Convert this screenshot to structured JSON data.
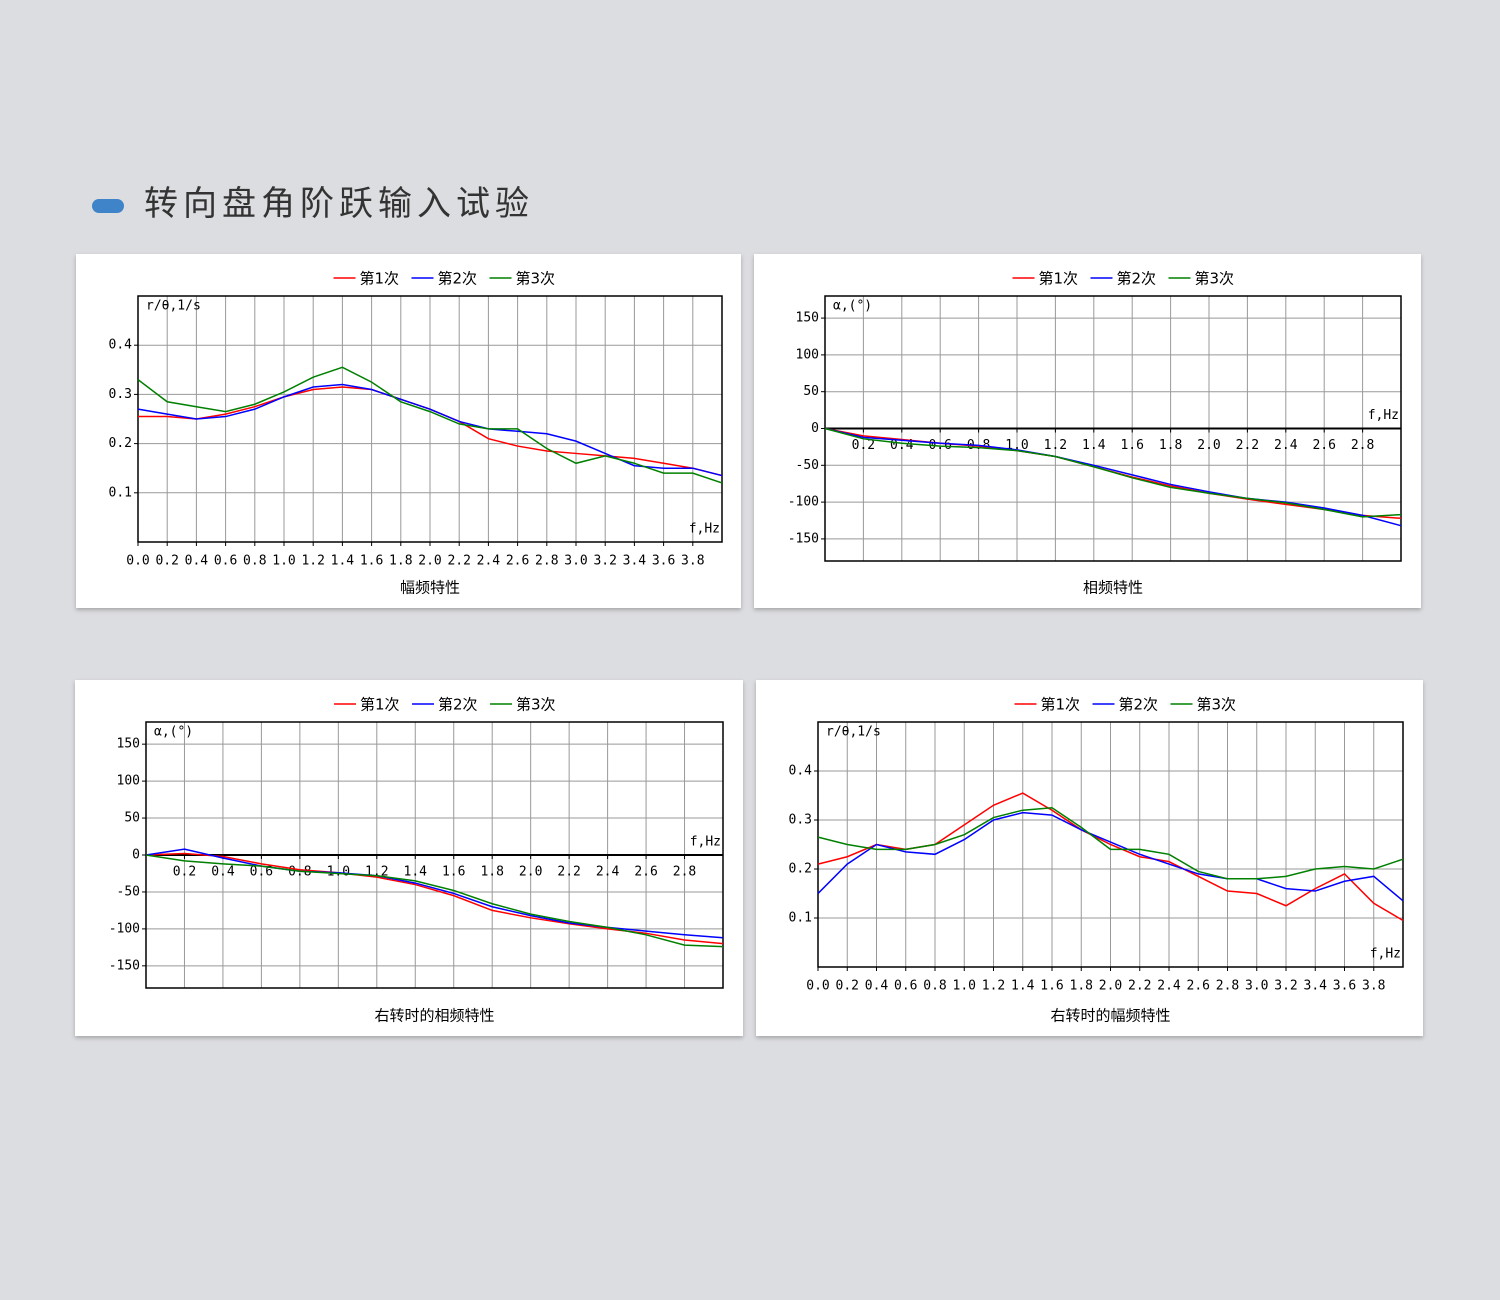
{
  "header": {
    "title": "转向盘角阶跃输入试验"
  },
  "chart_data": [
    {
      "type": "line",
      "title": "幅频特性",
      "y_label": "r/θ,1/s",
      "x_label": "f,Hz",
      "x": [
        0,
        0.2,
        0.4,
        0.6,
        0.8,
        1.0,
        1.2,
        1.4,
        1.6,
        1.8,
        2.0,
        2.2,
        2.4,
        2.6,
        2.8,
        3.0,
        3.2,
        3.4,
        3.6,
        3.8,
        4.0
      ],
      "series": [
        {
          "name": "第1次",
          "color": "#ff0000",
          "values": [
            0.255,
            0.255,
            0.25,
            0.26,
            0.275,
            0.295,
            0.31,
            0.315,
            0.31,
            0.29,
            0.27,
            0.245,
            0.21,
            0.195,
            0.185,
            0.18,
            0.175,
            0.17,
            0.16,
            0.15,
            0.135
          ]
        },
        {
          "name": "第2次",
          "color": "#0000ff",
          "values": [
            0.27,
            0.26,
            0.25,
            0.255,
            0.27,
            0.295,
            0.315,
            0.32,
            0.31,
            0.29,
            0.27,
            0.245,
            0.23,
            0.225,
            0.22,
            0.205,
            0.18,
            0.155,
            0.15,
            0.15,
            0.135
          ]
        },
        {
          "name": "第3次",
          "color": "#008000",
          "values": [
            0.33,
            0.285,
            0.275,
            0.265,
            0.28,
            0.305,
            0.335,
            0.355,
            0.325,
            0.285,
            0.265,
            0.24,
            0.23,
            0.23,
            0.19,
            0.16,
            0.175,
            0.16,
            0.14,
            0.14,
            0.12
          ]
        }
      ],
      "xlim": [
        0,
        4.0
      ],
      "ylim": [
        0,
        0.5
      ],
      "xticks": [
        {
          "value": 0,
          "label": "0.0"
        },
        0.2,
        0.4,
        0.6,
        0.8,
        {
          "value": 1,
          "label": "1.0"
        },
        1.2,
        1.4,
        1.6,
        1.8,
        {
          "value": 2,
          "label": "2.0"
        },
        2.2,
        2.4,
        2.6,
        2.8,
        {
          "value": 3,
          "label": "3.0"
        },
        3.2,
        3.4,
        3.6,
        3.8
      ],
      "yticks": [
        0.1,
        0.2,
        0.3,
        0.4
      ],
      "grid": true
    },
    {
      "type": "line",
      "title": "相频特性",
      "y_label": "α,(°)",
      "x_label": "f,Hz",
      "x": [
        0,
        0.2,
        0.4,
        0.6,
        0.8,
        1.0,
        1.2,
        1.4,
        1.6,
        1.8,
        2.0,
        2.2,
        2.4,
        2.6,
        2.8,
        3.0
      ],
      "series": [
        {
          "name": "第1次",
          "color": "#ff0000",
          "values": [
            0,
            -10,
            -15,
            -20,
            -24,
            -30,
            -38,
            -52,
            -66,
            -78,
            -88,
            -96,
            -103,
            -110,
            -118,
            -122
          ]
        },
        {
          "name": "第2次",
          "color": "#0000ff",
          "values": [
            0,
            -12,
            -16,
            -20,
            -23,
            -29,
            -38,
            -50,
            -63,
            -76,
            -86,
            -95,
            -100,
            -108,
            -118,
            -132
          ]
        },
        {
          "name": "第3次",
          "color": "#008000",
          "values": [
            0,
            -14,
            -20,
            -24,
            -26,
            -30,
            -38,
            -52,
            -67,
            -80,
            -88,
            -95,
            -101,
            -110,
            -120,
            -117
          ]
        }
      ],
      "xlim": [
        0,
        3.0
      ],
      "ylim": [
        -180,
        180
      ],
      "xticks": [
        0.2,
        0.4,
        0.6,
        0.8,
        {
          "value": 1,
          "label": "1.0"
        },
        1.2,
        1.4,
        1.6,
        1.8,
        {
          "value": 2,
          "label": "2.0"
        },
        2.2,
        2.4,
        2.6,
        2.8
      ],
      "yticks": [
        -150,
        -100,
        -50,
        0,
        50,
        100,
        150
      ],
      "grid": true
    },
    {
      "type": "line",
      "title": "右转时的相频特性",
      "y_label": "α,(°)",
      "x_label": "f,Hz",
      "x": [
        0,
        0.2,
        0.4,
        0.6,
        0.8,
        1.0,
        1.2,
        1.4,
        1.6,
        1.8,
        2.0,
        2.2,
        2.4,
        2.6,
        2.8,
        3.0
      ],
      "series": [
        {
          "name": "第1次",
          "color": "#ff0000",
          "values": [
            0,
            2,
            -2,
            -12,
            -20,
            -24,
            -30,
            -40,
            -55,
            -75,
            -85,
            -93,
            -100,
            -106,
            -115,
            -120
          ]
        },
        {
          "name": "第2次",
          "color": "#0000ff",
          "values": [
            0,
            8,
            -4,
            -15,
            -22,
            -24,
            -28,
            -38,
            -52,
            -70,
            -82,
            -92,
            -98,
            -103,
            -108,
            -112
          ]
        },
        {
          "name": "第3次",
          "color": "#008000",
          "values": [
            0,
            -8,
            -12,
            -15,
            -22,
            -25,
            -28,
            -35,
            -48,
            -66,
            -80,
            -90,
            -98,
            -108,
            -122,
            -124
          ]
        }
      ],
      "xlim": [
        0,
        3.0
      ],
      "ylim": [
        -180,
        180
      ],
      "xticks": [
        0.2,
        0.4,
        0.6,
        0.8,
        {
          "value": 1,
          "label": "1.0"
        },
        1.2,
        1.4,
        1.6,
        1.8,
        {
          "value": 2,
          "label": "2.0"
        },
        2.2,
        2.4,
        2.6,
        2.8
      ],
      "yticks": [
        -150,
        -100,
        -50,
        0,
        50,
        100,
        150
      ],
      "grid": true
    },
    {
      "type": "line",
      "title": "右转时的幅频特性",
      "y_label": "r/θ,1/s",
      "x_label": "f,Hz",
      "x": [
        0,
        0.2,
        0.4,
        0.6,
        0.8,
        1.0,
        1.2,
        1.4,
        1.6,
        1.8,
        2.0,
        2.2,
        2.4,
        2.6,
        2.8,
        3.0,
        3.2,
        3.4,
        3.6,
        3.8,
        4.0
      ],
      "series": [
        {
          "name": "第1次",
          "color": "#ff0000",
          "values": [
            0.21,
            0.225,
            0.25,
            0.24,
            0.25,
            0.29,
            0.33,
            0.355,
            0.32,
            0.28,
            0.25,
            0.225,
            0.215,
            0.185,
            0.155,
            0.15,
            0.125,
            0.16,
            0.19,
            0.13,
            0.095
          ]
        },
        {
          "name": "第2次",
          "color": "#0000ff",
          "values": [
            0.15,
            0.21,
            0.25,
            0.235,
            0.23,
            0.26,
            0.3,
            0.315,
            0.31,
            0.28,
            0.255,
            0.23,
            0.21,
            0.19,
            0.18,
            0.18,
            0.16,
            0.155,
            0.175,
            0.185,
            0.135
          ]
        },
        {
          "name": "第3次",
          "color": "#008000",
          "values": [
            0.265,
            0.25,
            0.24,
            0.24,
            0.25,
            0.27,
            0.305,
            0.32,
            0.325,
            0.285,
            0.24,
            0.24,
            0.23,
            0.195,
            0.18,
            0.18,
            0.185,
            0.2,
            0.205,
            0.2,
            0.22
          ]
        }
      ],
      "xlim": [
        0,
        4.0
      ],
      "ylim": [
        0,
        0.5
      ],
      "xticks": [
        {
          "value": 0,
          "label": "0.0"
        },
        0.2,
        0.4,
        0.6,
        0.8,
        {
          "value": 1,
          "label": "1.0"
        },
        1.2,
        1.4,
        1.6,
        1.8,
        {
          "value": 2,
          "label": "2.0"
        },
        2.2,
        2.4,
        2.6,
        2.8,
        {
          "value": 3,
          "label": "3.0"
        },
        3.2,
        3.4,
        3.6,
        3.8
      ],
      "yticks": [
        0.1,
        0.2,
        0.3,
        0.4
      ],
      "grid": true
    }
  ]
}
